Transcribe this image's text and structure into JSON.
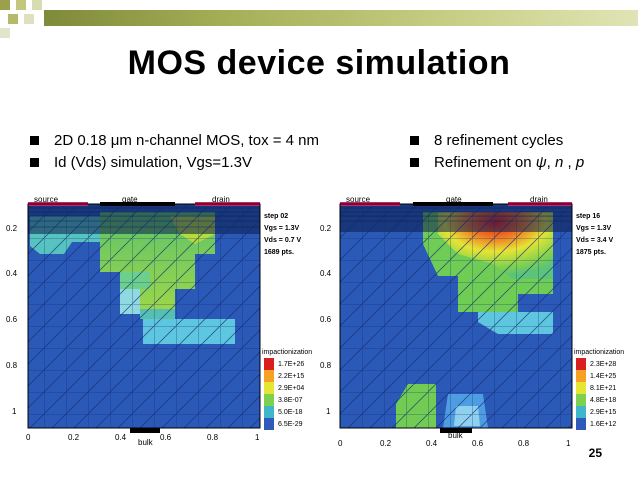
{
  "slide": {
    "title": "MOS device simulation",
    "page_number": "25"
  },
  "bullets_left": [
    "2D 0.18 μm n-channel MOS, tox = 4 nm",
    "Id (Vds) simulation, Vgs=1.3V"
  ],
  "bullets_right": [
    {
      "text": "8 refinement cycles"
    },
    {
      "prefix": "Refinement on ",
      "psi": "ψ",
      "sep1": ", ",
      "n": "n",
      "sep2": " , ",
      "p": "p"
    }
  ],
  "sim_left": {
    "region_labels": {
      "source": "source",
      "gate": "gate",
      "drain": "drain",
      "bulk": "bulk"
    },
    "info": [
      "step 02",
      "Vgs = 1.3V",
      "Vds = 0.7 V",
      "1689 pts."
    ],
    "y_ticks": [
      "0.2",
      "0.4",
      "0.6",
      "0.8",
      "1"
    ],
    "x_ticks": [
      "0",
      "0.2",
      "0.4",
      "0.6",
      "0.8",
      "1"
    ],
    "legend_title": "impactionization",
    "legend_values": [
      "1.7E+26",
      "2.2E+15",
      "2.9E+04",
      "3.8E-07",
      "5.0E-18",
      "6.5E-29"
    ],
    "legend_colors": [
      "#d81e1e",
      "#f5a123",
      "#e6e435",
      "#7ed14e",
      "#3fb6c9",
      "#2f5aba"
    ]
  },
  "sim_right": {
    "region_labels": {
      "source": "source",
      "gate": "gate",
      "drain": "drain",
      "bulk": "bulk"
    },
    "info": [
      "step 16",
      "Vgs = 1.3V",
      "Vds = 3.4 V",
      "1875 pts."
    ],
    "y_ticks": [
      "0.2",
      "0.4",
      "0.6",
      "0.8",
      "1"
    ],
    "x_ticks": [
      "0",
      "0.2",
      "0.4",
      "0.6",
      "0.8",
      "1"
    ],
    "legend_title": "impactionization",
    "legend_values": [
      "2.3E+28",
      "1.4E+25",
      "8.1E+21",
      "4.8E+18",
      "2.9E+15",
      "1.6E+12"
    ],
    "legend_colors": [
      "#d81e1e",
      "#f5a123",
      "#e6e435",
      "#7ed14e",
      "#3fb6c9",
      "#2f5aba"
    ]
  }
}
